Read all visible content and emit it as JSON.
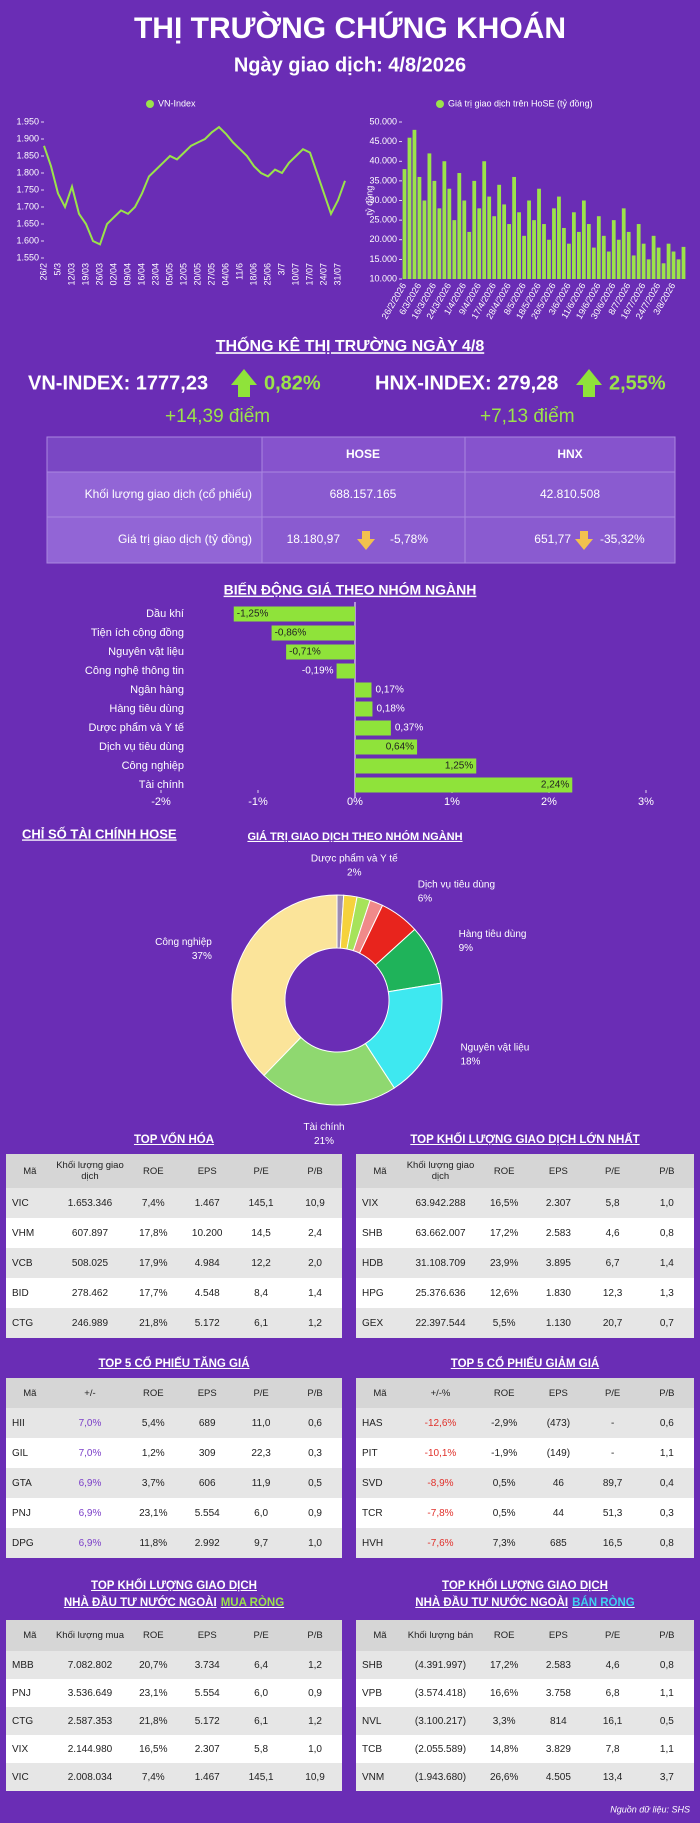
{
  "header": {
    "title": "THỊ TRƯỜNG CHỨNG KHOÁN",
    "subtitle": "Ngày giao dịch: 4/8/2026"
  },
  "chart_data": [
    {
      "type": "line",
      "categories": [
        "26/2",
        null,
        "5/3",
        null,
        "12/03",
        null,
        "19/03",
        null,
        "26/03",
        null,
        "02/04",
        null,
        "09/04",
        null,
        "16/04",
        null,
        "23/04",
        null,
        "05/05",
        null,
        "12/05",
        null,
        "20/05",
        null,
        "27/05",
        null,
        "04/06",
        null,
        "11/6",
        null,
        "18/06",
        null,
        "25/06",
        null,
        "3/7",
        null,
        "10/07",
        null,
        "17/07",
        null,
        "24/07",
        null,
        "31/07",
        null
      ],
      "series": [
        {
          "name": "VN-Index",
          "color": "#9be34a",
          "values": [
            1880,
            1820,
            1740,
            1700,
            1760,
            1680,
            1650,
            1600,
            1590,
            1650,
            1670,
            1690,
            1680,
            1700,
            1740,
            1790,
            1810,
            1830,
            1850,
            1840,
            1860,
            1880,
            1890,
            1900,
            1920,
            1935,
            1915,
            1890,
            1870,
            1850,
            1820,
            1800,
            1790,
            1810,
            1800,
            1830,
            1850,
            1870,
            1860,
            1800,
            1740,
            1680,
            1720,
            1777
          ]
        }
      ],
      "ylim": [
        1550,
        1950
      ],
      "yticks": [
        {
          "value": 1550,
          "label": "1.550"
        },
        {
          "value": 1600,
          "label": "1.600"
        },
        {
          "value": 1650,
          "label": "1.650"
        },
        {
          "value": 1700,
          "label": "1.700"
        },
        {
          "value": 1750,
          "label": "1.750"
        },
        {
          "value": 1800,
          "label": "1.800"
        },
        {
          "value": 1850,
          "label": "1.850"
        },
        {
          "value": 1900,
          "label": "1.900"
        },
        {
          "value": 1950,
          "label": "1.950"
        }
      ],
      "legend": "top",
      "grid": false
    },
    {
      "type": "bar",
      "ylabel": "tỷ đồng",
      "categories": [
        "26/2/2026",
        null,
        null,
        "6/3/2026",
        null,
        null,
        "16/3/2026",
        null,
        null,
        "24/3/2026",
        null,
        null,
        "1/4/2026",
        null,
        null,
        "9/4/2026",
        null,
        null,
        "17/4/2026",
        null,
        null,
        "28/4/2026",
        null,
        null,
        "8/5/2026",
        null,
        null,
        "18/5/2026",
        null,
        null,
        "26/5/2026",
        null,
        null,
        "3/6/2026",
        null,
        null,
        "11/6/2026",
        null,
        null,
        "19/6/2026",
        null,
        null,
        "30/6/2026",
        null,
        null,
        "8/7/2026",
        null,
        null,
        "16/7/2026",
        null,
        null,
        "24/7/2026",
        null,
        null,
        "3/8/2026",
        null,
        null
      ],
      "series": [
        {
          "name": "Giá trị giao dịch trên HoSE (tỷ đồng)",
          "color": "#9be34a",
          "values": [
            38000,
            46000,
            48000,
            36000,
            30000,
            42000,
            35000,
            28000,
            40000,
            33000,
            25000,
            37000,
            30000,
            22000,
            35000,
            28000,
            40000,
            31000,
            26000,
            34000,
            29000,
            24000,
            36000,
            27000,
            21000,
            30000,
            25000,
            33000,
            24000,
            20000,
            28000,
            31000,
            23000,
            19000,
            27000,
            22000,
            30000,
            24000,
            18000,
            26000,
            21000,
            17000,
            25000,
            20000,
            28000,
            22000,
            16000,
            24000,
            19000,
            15000,
            21000,
            18000,
            14000,
            19000,
            17000,
            15000,
            18180.97
          ]
        }
      ],
      "ylim": [
        10000,
        50000
      ],
      "yticks": [
        {
          "value": 10000,
          "label": "10.000"
        },
        {
          "value": 15000,
          "label": "15.000"
        },
        {
          "value": 20000,
          "label": "20.000"
        },
        {
          "value": 25000,
          "label": "25.000"
        },
        {
          "value": 30000,
          "label": "30.000"
        },
        {
          "value": 35000,
          "label": "35.000"
        },
        {
          "value": 40000,
          "label": "40.000"
        },
        {
          "value": 45000,
          "label": "45.000"
        },
        {
          "value": 50000,
          "label": "50.000"
        }
      ],
      "legend": "top",
      "grid": false
    },
    {
      "type": "bar",
      "horizontal": true,
      "title": "BIẾN ĐỘNG GIÁ THEO NHÓM NGÀNH",
      "categories": [
        "Dầu khí",
        "Tiện ích cộng đồng",
        "Nguyên vật liệu",
        "Công nghệ thông tin",
        "Ngân hàng",
        "Hàng tiêu dùng",
        "Dược phẩm và Y tế",
        "Dịch vụ tiêu dùng",
        "Công nghiệp",
        "Tài chính"
      ],
      "values": [
        -1.25,
        -0.86,
        -0.71,
        -0.19,
        0.17,
        0.18,
        0.37,
        0.64,
        1.25,
        2.24
      ],
      "value_labels": [
        "-1,25%",
        "-0,86%",
        "-0,71%",
        "-0,19%",
        "0,17%",
        "0,18%",
        "0,37%",
        "0,64%",
        "1,25%",
        "2,24%"
      ],
      "color": "#8fe33a",
      "xlim": [
        -2,
        3
      ],
      "xticks": [
        {
          "value": -2,
          "label": "-2%"
        },
        {
          "value": -1,
          "label": "-1%"
        },
        {
          "value": 0,
          "label": "0%"
        },
        {
          "value": 1,
          "label": "1%"
        },
        {
          "value": 2,
          "label": "2%"
        },
        {
          "value": 3,
          "label": "3%"
        }
      ]
    },
    {
      "type": "donut",
      "title": "GIÁ TRỊ GIAO DỊCH THEO NHÓM NGÀNH",
      "categories": [
        null,
        "Dược phẩm và Y tế",
        null,
        null,
        "Dịch vụ tiêu dùng",
        "Hàng tiêu dùng",
        "Nguyên vật liệu",
        "Tài chính",
        "Công nghiệp"
      ],
      "values": [
        1,
        2,
        2,
        2,
        6,
        9,
        18,
        21,
        37
      ],
      "value_labels": [
        null,
        "2%",
        null,
        null,
        "6%",
        "9%",
        "18%",
        "21%",
        "37%"
      ],
      "colors": [
        "#9c8cb4",
        "#f5d23c",
        "#a6e35a",
        "#f08a8a",
        "#e8241d",
        "#1fb35a",
        "#3ee8f0",
        "#8fd870",
        "#fbe49a"
      ]
    }
  ],
  "market_stats": {
    "title": "THỐNG KÊ THỊ TRƯỜNG NGÀY 4/8",
    "vn_index": {
      "label": "VN-INDEX: 1777,23",
      "change": "0,82%",
      "points": "+14,39 điểm"
    },
    "hnx_index": {
      "label": "HNX-INDEX: 279,28",
      "change": "2,55%",
      "points": "+7,13 điểm"
    }
  },
  "summary_table": {
    "columns": [
      "HOSE",
      "HNX"
    ],
    "rows": [
      {
        "label": "Khối lượng giao dịch (cổ phiếu)",
        "hose": "688.157.165",
        "hnx": "42.810.508"
      },
      {
        "label": "Giá trị giao dịch (tỷ đồng)",
        "hose": "18.180,97",
        "hose_change": "-5,78%",
        "hnx": "651,77",
        "hnx_change": "-35,32%"
      }
    ]
  },
  "financial_section_title": "CHỈ SỐ TÀI CHÍNH HOSE",
  "tables": [
    {
      "title": [
        "TOP VỐN HÓA"
      ],
      "columns": [
        "Mã",
        "Khối lượng giao dịch",
        "ROE",
        "EPS",
        "P/E",
        "P/B"
      ],
      "rows": [
        [
          "VIC",
          "1.653.346",
          "7,4%",
          "1.467",
          "145,1",
          "10,9"
        ],
        [
          "VHM",
          "607.897",
          "17,8%",
          "10.200",
          "14,5",
          "2,4"
        ],
        [
          "VCB",
          "508.025",
          "17,9%",
          "4.984",
          "12,2",
          "2,0"
        ],
        [
          "BID",
          "278.462",
          "17,7%",
          "4.548",
          "8,4",
          "1,4"
        ],
        [
          "CTG",
          "246.989",
          "21,8%",
          "5.172",
          "6,1",
          "1,2"
        ]
      ]
    },
    {
      "title": [
        "TOP KHỐI LƯỢNG GIAO DỊCH LỚN NHẤT"
      ],
      "columns": [
        "Mã",
        "Khối lượng giao dịch",
        "ROE",
        "EPS",
        "P/E",
        "P/B"
      ],
      "rows": [
        [
          "VIX",
          "63.942.288",
          "16,5%",
          "2.307",
          "5,8",
          "1,0"
        ],
        [
          "SHB",
          "63.662.007",
          "17,2%",
          "2.583",
          "4,6",
          "0,8"
        ],
        [
          "HDB",
          "31.108.709",
          "23,9%",
          "3.895",
          "6,7",
          "1,4"
        ],
        [
          "HPG",
          "25.376.636",
          "12,6%",
          "1.830",
          "12,3",
          "1,3"
        ],
        [
          "GEX",
          "22.397.544",
          "5,5%",
          "1.130",
          "20,7",
          "0,7"
        ]
      ]
    },
    {
      "title": [
        "TOP 5 CỔ PHIẾU TĂNG GIÁ"
      ],
      "columns": [
        "Mã",
        "+/-",
        "ROE",
        "EPS",
        "P/E",
        "P/B"
      ],
      "change_color": "#7b3fc8",
      "rows": [
        [
          "HII",
          "7,0%",
          "5,4%",
          "689",
          "11,0",
          "0,6"
        ],
        [
          "GIL",
          "7,0%",
          "1,2%",
          "309",
          "22,3",
          "0,3"
        ],
        [
          "GTA",
          "6,9%",
          "3,7%",
          "606",
          "11,9",
          "0,5"
        ],
        [
          "PNJ",
          "6,9%",
          "23,1%",
          "5.554",
          "6,0",
          "0,9"
        ],
        [
          "DPG",
          "6,9%",
          "11,8%",
          "2.992",
          "9,7",
          "1,0"
        ]
      ]
    },
    {
      "title": [
        "TOP 5 CỔ PHIẾU GIẢM GIÁ"
      ],
      "columns": [
        "Mã",
        "+/-%",
        "ROE",
        "EPS",
        "P/E",
        "P/B"
      ],
      "change_color": "#e0302a",
      "rows": [
        [
          "HAS",
          "-12,6%",
          "-2,9%",
          "(473)",
          "-",
          "0,6"
        ],
        [
          "PIT",
          "-10,1%",
          "-1,9%",
          "(149)",
          "-",
          "1,1"
        ],
        [
          "SVD",
          "-8,9%",
          "0,5%",
          "46",
          "89,7",
          "0,4"
        ],
        [
          "TCR",
          "-7,8%",
          "0,5%",
          "44",
          "51,3",
          "0,3"
        ],
        [
          "HVH",
          "-7,6%",
          "7,3%",
          "685",
          "16,5",
          "0,8"
        ]
      ]
    },
    {
      "title": [
        "TOP KHỐI LƯỢNG GIAO DỊCH",
        "NHÀ ĐẦU TƯ NƯỚC NGOÀI"
      ],
      "highlight": "MUA RÒNG",
      "highlight_color": "#9be34a",
      "columns": [
        "Mã",
        "Khối lượng mua",
        "ROE",
        "EPS",
        "P/E",
        "P/B"
      ],
      "rows": [
        [
          "MBB",
          "7.082.802",
          "20,7%",
          "3.734",
          "6,4",
          "1,2"
        ],
        [
          "PNJ",
          "3.536.649",
          "23,1%",
          "5.554",
          "6,0",
          "0,9"
        ],
        [
          "CTG",
          "2.587.353",
          "21,8%",
          "5.172",
          "6,1",
          "1,2"
        ],
        [
          "VIX",
          "2.144.980",
          "16,5%",
          "2.307",
          "5,8",
          "1,0"
        ],
        [
          "VIC",
          "2.008.034",
          "7,4%",
          "1.467",
          "145,1",
          "10,9"
        ]
      ]
    },
    {
      "title": [
        "TOP KHỐI LƯỢNG GIAO DỊCH",
        "NHÀ ĐẦU TƯ NƯỚC NGOÀI"
      ],
      "highlight": "BÁN RÒNG",
      "highlight_color": "#3fd0f0",
      "columns": [
        "Mã",
        "Khối lượng bán",
        "ROE",
        "EPS",
        "P/E",
        "P/B"
      ],
      "rows": [
        [
          "SHB",
          "(4.391.997)",
          "17,2%",
          "2.583",
          "4,6",
          "0,8"
        ],
        [
          "VPB",
          "(3.574.418)",
          "16,6%",
          "3.758",
          "6,8",
          "1,1"
        ],
        [
          "NVL",
          "(3.100.217)",
          "3,3%",
          "814",
          "16,1",
          "0,5"
        ],
        [
          "TCB",
          "(2.055.589)",
          "14,8%",
          "3.829",
          "7,8",
          "1,1"
        ],
        [
          "VNM",
          "(1.943.680)",
          "26,6%",
          "4.505",
          "13,4",
          "3,7"
        ]
      ]
    }
  ],
  "footer": "Nguồn dữ liệu: SHS"
}
